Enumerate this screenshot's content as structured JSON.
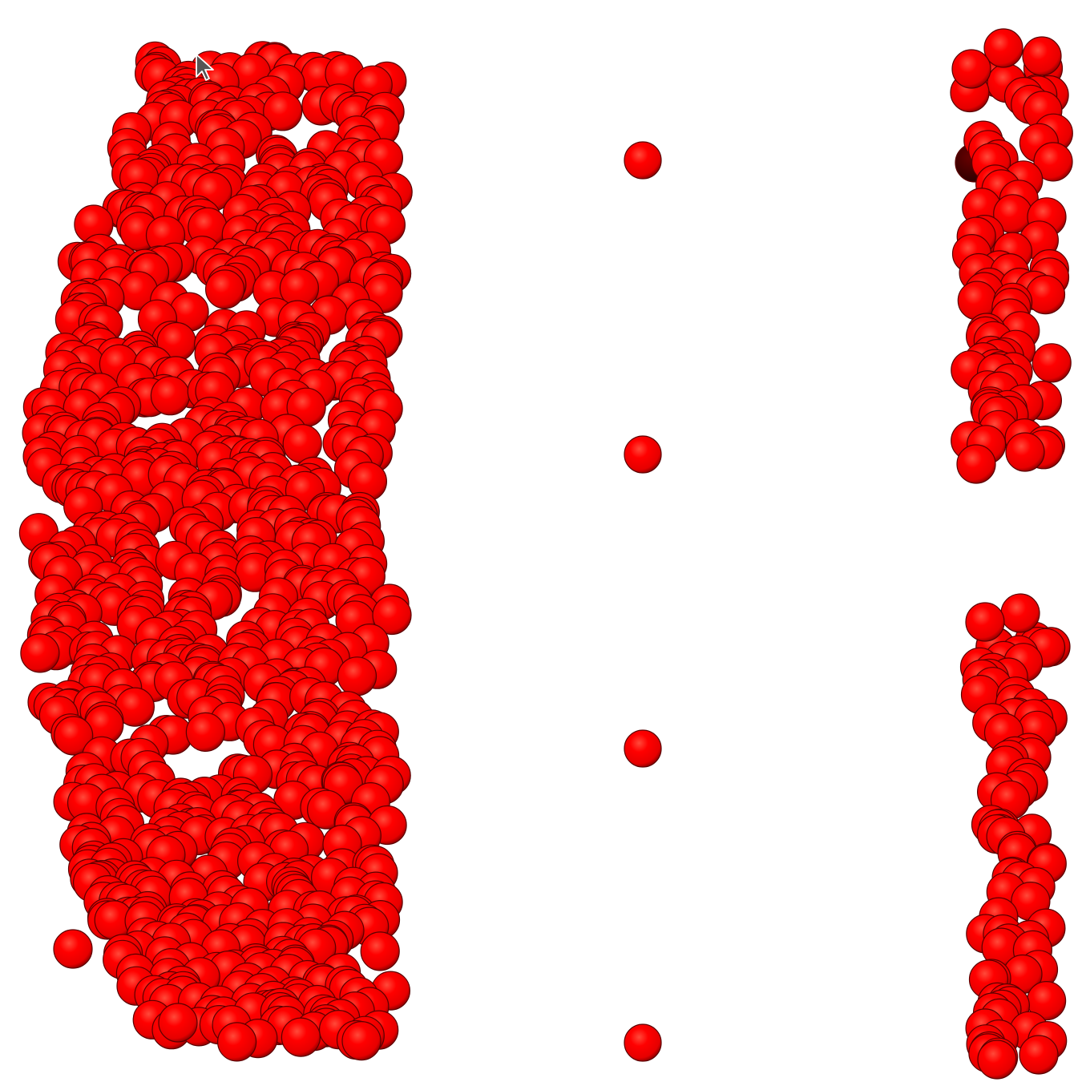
{
  "scene": {
    "background": "#ffffff",
    "particle_color": "#ff0000",
    "particle_edge_color": "#5a0000",
    "shadow_particle_color": "#3a0000"
  },
  "cursor": {
    "icon": "arrow-cursor-icon",
    "color": "#555555"
  }
}
